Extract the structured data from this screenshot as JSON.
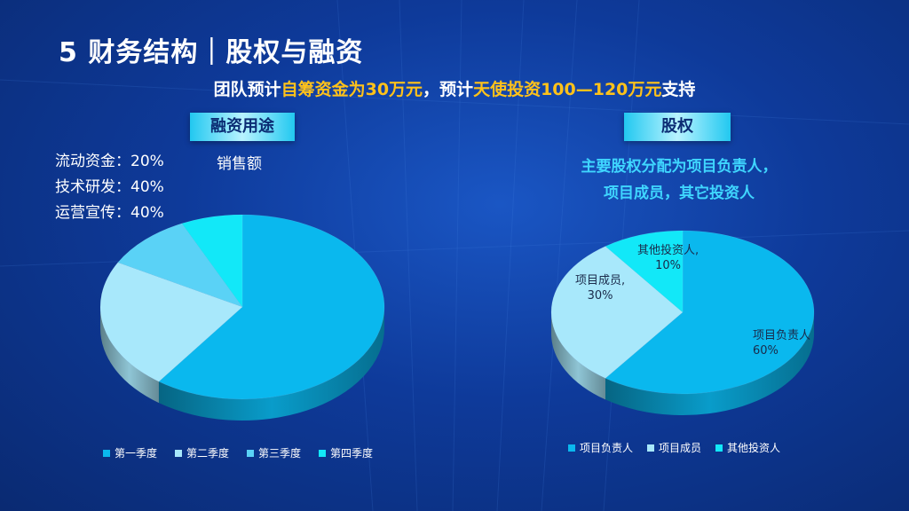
{
  "slide": {
    "title": "5 财务结构｜股权与融资",
    "subtitle_parts": [
      {
        "text": "团队预计",
        "highlight": false
      },
      {
        "text": "自筹资金为30万元",
        "highlight": true
      },
      {
        "text": "，预计",
        "highlight": false
      },
      {
        "text": "天使投资100—120万元",
        "highlight": true
      },
      {
        "text": "支持",
        "highlight": false
      }
    ],
    "left_tag": "融资用途",
    "right_tag": "股权",
    "fund_uses": [
      "流动资金：20%",
      "技术研发：40%",
      "运营宣传：40%"
    ],
    "equity_note_lines": [
      "主要股权分配为项目负责人，",
      "项目成员，其它投资人"
    ],
    "colors": {
      "highlight": "#ffc21a",
      "accent": "#3fd6ff"
    }
  },
  "chart_data": [
    {
      "type": "pie",
      "style": "3d",
      "title": "销售额",
      "categories": [
        "第一季度",
        "第二季度",
        "第三季度",
        "第四季度"
      ],
      "values": [
        60,
        23,
        10,
        7
      ],
      "colors": [
        "#0ab8ee",
        "#a8e8fb",
        "#5ad2f6",
        "#12e8f8"
      ],
      "legend": "bottom"
    },
    {
      "type": "pie",
      "style": "3d",
      "title": "",
      "categories": [
        "项目负责人",
        "项目成员",
        "其他投资人"
      ],
      "values": [
        60,
        30,
        10
      ],
      "colors": [
        "#0ab8ee",
        "#a8e8fb",
        "#12e8f8"
      ],
      "data_labels": [
        {
          "name": "项目负责人",
          "value": "60%"
        },
        {
          "name": "项目成员,",
          "value": "30%"
        },
        {
          "name": "其他投资人,",
          "value": "10%"
        }
      ],
      "legend": "bottom"
    }
  ]
}
